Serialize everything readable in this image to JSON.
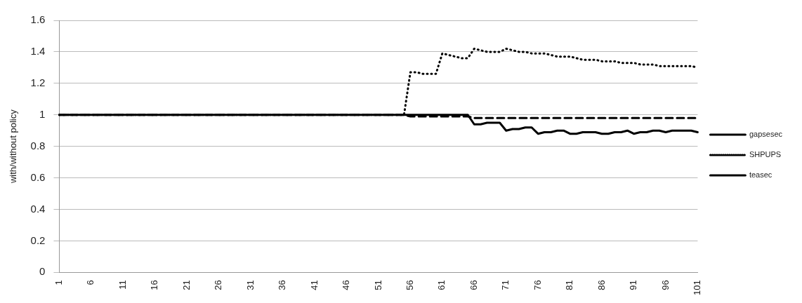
{
  "chart_data": {
    "type": "line",
    "ylabel": "with/without policy",
    "categories": [
      "1",
      null,
      null,
      null,
      null,
      "6",
      null,
      null,
      null,
      null,
      "11",
      null,
      null,
      null,
      null,
      "16",
      null,
      null,
      null,
      null,
      "21",
      null,
      null,
      null,
      null,
      "26",
      null,
      null,
      null,
      null,
      "31",
      null,
      null,
      null,
      null,
      "36",
      null,
      null,
      null,
      null,
      "41",
      null,
      null,
      null,
      null,
      "46",
      null,
      null,
      null,
      null,
      "51",
      null,
      null,
      null,
      null,
      "56",
      null,
      null,
      null,
      null,
      "61",
      null,
      null,
      null,
      null,
      "66",
      null,
      null,
      null,
      null,
      "71",
      null,
      null,
      null,
      null,
      "76",
      null,
      null,
      null,
      null,
      "81",
      null,
      null,
      null,
      null,
      "86",
      null,
      null,
      null,
      null,
      "91",
      null,
      null,
      null,
      null,
      "96",
      null,
      null,
      null,
      null,
      "101"
    ],
    "series": [
      {
        "name": "gapsesec",
        "color": "#000000",
        "line_style": "solid",
        "values": [
          1,
          1,
          1,
          1,
          1,
          1,
          1,
          1,
          1,
          1,
          1,
          1,
          1,
          1,
          1,
          1,
          1,
          1,
          1,
          1,
          1,
          1,
          1,
          1,
          1,
          1,
          1,
          1,
          1,
          1,
          1,
          1,
          1,
          1,
          1,
          1,
          1,
          1,
          1,
          1,
          1,
          1,
          1,
          1,
          1,
          1,
          1,
          1,
          1,
          1,
          1,
          1,
          1,
          1,
          1,
          1,
          1,
          1,
          1,
          1,
          1,
          1,
          1,
          1,
          1,
          0.94,
          0.94,
          0.95,
          0.95,
          0.95,
          0.9,
          0.91,
          0.91,
          0.92,
          0.92,
          0.88,
          0.89,
          0.89,
          0.9,
          0.9,
          0.88,
          0.88,
          0.89,
          0.89,
          0.89,
          0.88,
          0.88,
          0.89,
          0.89,
          0.9,
          0.88,
          0.89,
          0.89,
          0.9,
          0.9,
          0.89,
          0.9,
          0.9,
          0.9,
          0.9,
          0.89
        ]
      },
      {
        "name": "SHPUPS",
        "color": "#000000",
        "line_style": "dotted",
        "values": [
          1,
          1,
          1,
          1,
          1,
          1,
          1,
          1,
          1,
          1,
          1,
          1,
          1,
          1,
          1,
          1,
          1,
          1,
          1,
          1,
          1,
          1,
          1,
          1,
          1,
          1,
          1,
          1,
          1,
          1,
          1,
          1,
          1,
          1,
          1,
          1,
          1,
          1,
          1,
          1,
          1,
          1,
          1,
          1,
          1,
          1,
          1,
          1,
          1,
          1,
          1,
          1,
          1,
          1,
          1,
          1.27,
          1.27,
          1.26,
          1.26,
          1.26,
          1.39,
          1.38,
          1.37,
          1.36,
          1.36,
          1.42,
          1.41,
          1.4,
          1.4,
          1.4,
          1.42,
          1.41,
          1.4,
          1.4,
          1.39,
          1.39,
          1.39,
          1.38,
          1.37,
          1.37,
          1.37,
          1.36,
          1.35,
          1.35,
          1.35,
          1.34,
          1.34,
          1.34,
          1.33,
          1.33,
          1.33,
          1.32,
          1.32,
          1.32,
          1.31,
          1.31,
          1.31,
          1.31,
          1.31,
          1.31,
          1.3
        ]
      },
      {
        "name": "teasec",
        "color": "#000000",
        "line_style": "dashed",
        "values": [
          1,
          1,
          1,
          1,
          1,
          1,
          1,
          1,
          1,
          1,
          1,
          1,
          1,
          1,
          1,
          1,
          1,
          1,
          1,
          1,
          1,
          1,
          1,
          1,
          1,
          1,
          1,
          1,
          1,
          1,
          1,
          1,
          1,
          1,
          1,
          1,
          1,
          1,
          1,
          1,
          1,
          1,
          1,
          1,
          1,
          1,
          1,
          1,
          1,
          1,
          1,
          1,
          1,
          1,
          1,
          0.99,
          0.99,
          0.99,
          0.99,
          0.99,
          0.99,
          0.99,
          0.99,
          0.99,
          0.99,
          0.98,
          0.98,
          0.98,
          0.98,
          0.98,
          0.98,
          0.98,
          0.98,
          0.98,
          0.98,
          0.98,
          0.98,
          0.98,
          0.98,
          0.98,
          0.98,
          0.98,
          0.98,
          0.98,
          0.98,
          0.98,
          0.98,
          0.98,
          0.98,
          0.98,
          0.98,
          0.98,
          0.98,
          0.98,
          0.98,
          0.98,
          0.98,
          0.98,
          0.98,
          0.98,
          0.98
        ]
      }
    ],
    "ylim": [
      0,
      1.6
    ],
    "yticks": [
      0,
      0.2,
      0.4,
      0.6,
      0.8,
      1,
      1.2,
      1.4,
      1.6
    ],
    "grid": "y",
    "legend": "right",
    "marker": "none"
  }
}
